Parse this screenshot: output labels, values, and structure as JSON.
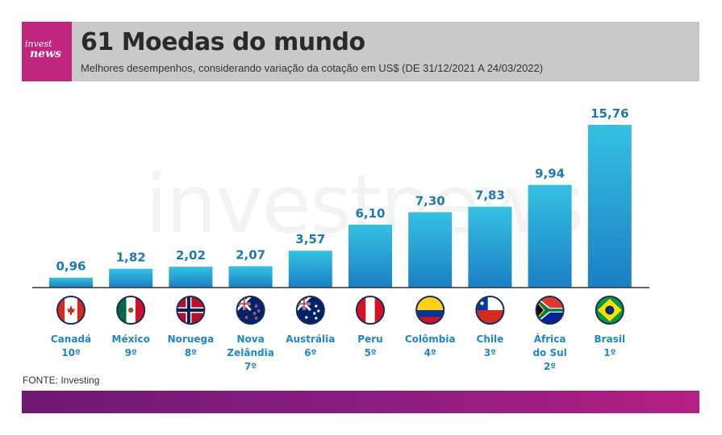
{
  "header": {
    "logo_line1": "invest",
    "logo_line2": "news",
    "title": "61 Moedas do mundo",
    "subtitle": "Melhores desempenhos, considerando variação da cotação em US$ (DE 31/12/2021 A 24/03/2022)"
  },
  "watermark": "investnews",
  "source": "FONTE: Investing",
  "colors": {
    "bar_top": "#35c1e2",
    "bar_bottom": "#1b7fc4",
    "value_text": "#1f79b5",
    "category_text": "#1f86c8",
    "brand": "#c0267d"
  },
  "chart_data": {
    "type": "bar",
    "title": "61 Moedas do mundo",
    "subtitle": "Melhores desempenhos, considerando variação da cotação em US$ (DE 31/12/2021 A 24/03/2022)",
    "categories": [
      "Canadá 10º",
      "México 9º",
      "Noruega 8º",
      "Nova Zelândia 7º",
      "Austrália 6º",
      "Peru 5º",
      "Colômbia 4º",
      "Chile 3º",
      "África do Sul 2º",
      "Brasil 1º"
    ],
    "category_lines": [
      [
        "Canadá",
        "10º"
      ],
      [
        "México",
        "9º"
      ],
      [
        "Noruega",
        "8º"
      ],
      [
        "Nova",
        "Zelândia",
        "7º"
      ],
      [
        "Austrália",
        "6º"
      ],
      [
        "Peru",
        "5º"
      ],
      [
        "Colômbia",
        "4º"
      ],
      [
        "Chile",
        "3º"
      ],
      [
        "África",
        "do Sul",
        "2º"
      ],
      [
        "Brasil",
        "1º"
      ]
    ],
    "flags": [
      "canada-flag",
      "mexico-flag",
      "norway-flag",
      "new-zealand-flag",
      "australia-flag",
      "peru-flag",
      "colombia-flag",
      "chile-flag",
      "south-africa-flag",
      "brazil-flag"
    ],
    "values": [
      0.96,
      1.82,
      2.02,
      2.07,
      3.57,
      6.1,
      7.3,
      7.83,
      9.94,
      15.76
    ],
    "value_labels": [
      "0,96",
      "1,82",
      "2,02",
      "2,07",
      "3,57",
      "6,10",
      "7,30",
      "7,83",
      "9,94",
      "15,76"
    ],
    "xlabel": "",
    "ylabel": "",
    "ylim": [
      0,
      15.76
    ],
    "grid": false,
    "legend": "none"
  }
}
